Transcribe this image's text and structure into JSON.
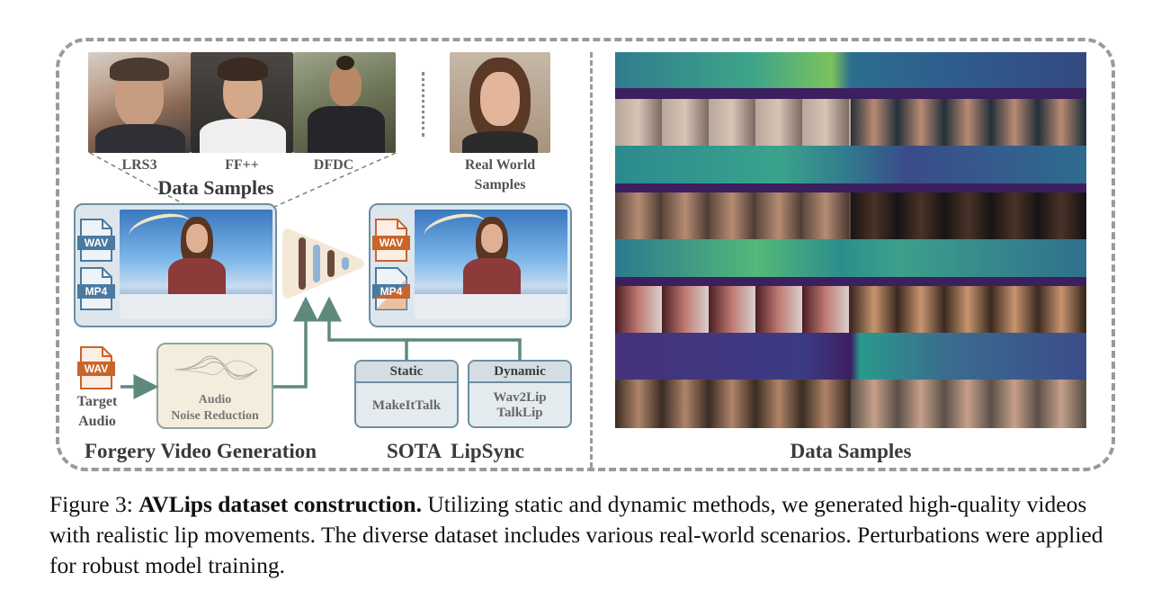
{
  "left_panel": {
    "dataset_labels": [
      "LRS3",
      "FF++",
      "DFDC"
    ],
    "real_world_label_line1": "Real World",
    "real_world_label_line2": "Samples",
    "data_samples_title": "Data Samples",
    "file_icons": {
      "wav": "WAV",
      "mp4": "MP4"
    },
    "target_audio_line1": "Target",
    "target_audio_line2": "Audio",
    "noise_reduction_line1": "Audio",
    "noise_reduction_line2": "Noise Reduction",
    "forgery_title": "Forgery Video Generation",
    "sota_title": "SOTA  LipSync",
    "static_box": {
      "header": "Static",
      "items": [
        "MakeItTalk"
      ]
    },
    "dynamic_box": {
      "header": "Dynamic",
      "items": [
        "Wav2Lip",
        "TalkLip"
      ]
    }
  },
  "right_panel": {
    "title": "Data Samples"
  },
  "caption": {
    "prefix": "Figure 3: ",
    "bold": "AVLips dataset construction.",
    "rest": " Utilizing static and dynamic methods, we generated high-quality videos with realistic lip movements. The diverse dataset includes various real-world scenarios. Perturbations were applied for robust model training."
  },
  "colors": {
    "border": "#9a9a9a",
    "panel_border": "#6c8ea3",
    "arrow": "#5e8a7d",
    "wav_orange": "#c8652a",
    "mp4_blue": "#4a7aa0",
    "encoder_bg": "#f3e8d6"
  }
}
